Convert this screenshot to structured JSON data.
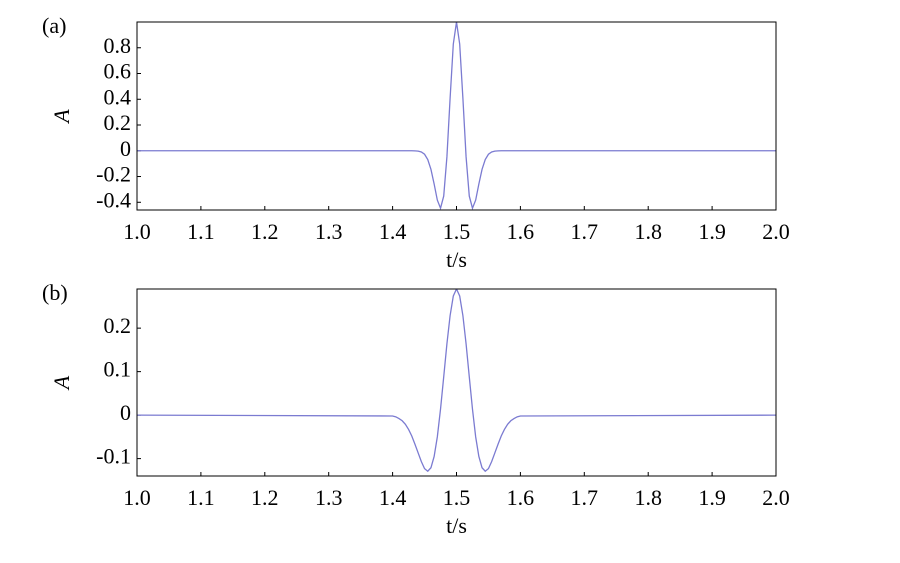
{
  "chart_data": [
    {
      "type": "line",
      "panel_label": "(a)",
      "ylabel": "A",
      "xlabel": "t/s",
      "color": "#7b7bd1",
      "x": [
        1.0,
        1.4,
        1.405,
        1.41,
        1.415,
        1.42,
        1.425,
        1.43,
        1.435,
        1.44,
        1.445,
        1.45,
        1.455,
        1.46,
        1.465,
        1.47,
        1.475,
        1.48,
        1.485,
        1.49,
        1.495,
        1.5,
        1.505,
        1.51,
        1.515,
        1.52,
        1.525,
        1.53,
        1.535,
        1.54,
        1.545,
        1.55,
        1.555,
        1.56,
        1.565,
        1.57,
        1.575,
        1.58,
        1.585,
        1.59,
        1.595,
        1.6,
        2.0
      ],
      "values": [
        0,
        0,
        0,
        0,
        0,
        0,
        0,
        0,
        -0.001,
        -0.003,
        -0.0095,
        -0.027,
        -0.068,
        -0.144,
        -0.258,
        -0.383,
        -0.446,
        -0.352,
        -0.047,
        0.409,
        0.829,
        1,
        0.829,
        0.409,
        -0.047,
        -0.352,
        -0.446,
        -0.383,
        -0.258,
        -0.144,
        -0.068,
        -0.027,
        -0.0095,
        -0.003,
        -0.001,
        0,
        0,
        0,
        0,
        0,
        0,
        0,
        0
      ],
      "xlim": [
        1.0,
        2.0
      ],
      "xticks": [
        {
          "value": 1.0,
          "label": "1.0"
        },
        1.1,
        1.2,
        1.3,
        1.4,
        1.5,
        1.6,
        1.7,
        1.8,
        1.9,
        {
          "value": 2.0,
          "label": "2.0"
        }
      ],
      "ylim": [
        -0.46,
        1.0
      ],
      "yticks": [
        0.8,
        0.6,
        0.4,
        0.2,
        0,
        -0.2,
        -0.4
      ]
    },
    {
      "type": "line",
      "panel_label": "(b)",
      "ylabel": "A",
      "xlabel": "t/s",
      "color": "#7b7bd1",
      "x": [
        1.0,
        1.4,
        1.405,
        1.41,
        1.415,
        1.42,
        1.425,
        1.43,
        1.435,
        1.44,
        1.445,
        1.45,
        1.455,
        1.46,
        1.465,
        1.47,
        1.475,
        1.48,
        1.485,
        1.49,
        1.495,
        1.5,
        1.505,
        1.51,
        1.515,
        1.52,
        1.525,
        1.53,
        1.535,
        1.54,
        1.545,
        1.55,
        1.555,
        1.56,
        1.565,
        1.57,
        1.575,
        1.58,
        1.585,
        1.59,
        1.595,
        1.6,
        2.0
      ],
      "values": [
        0,
        -0.002,
        -0.004,
        -0.008,
        -0.013,
        -0.021,
        -0.033,
        -0.048,
        -0.067,
        -0.087,
        -0.107,
        -0.123,
        -0.129,
        -0.121,
        -0.095,
        -0.05,
        0.014,
        0.088,
        0.164,
        0.229,
        0.274,
        0.29,
        0.274,
        0.229,
        0.164,
        0.088,
        0.014,
        -0.05,
        -0.095,
        -0.121,
        -0.129,
        -0.123,
        -0.107,
        -0.087,
        -0.067,
        -0.048,
        -0.033,
        -0.021,
        -0.013,
        -0.008,
        -0.004,
        -0.002,
        0
      ],
      "xlim": [
        1.0,
        2.0
      ],
      "xticks": [
        {
          "value": 1.0,
          "label": "1.0"
        },
        1.1,
        1.2,
        1.3,
        1.4,
        1.5,
        1.6,
        1.7,
        1.8,
        1.9,
        {
          "value": 2.0,
          "label": "2.0"
        }
      ],
      "ylim": [
        -0.14,
        0.29
      ],
      "yticks": [
        0.2,
        0.1,
        0,
        -0.1
      ]
    }
  ]
}
